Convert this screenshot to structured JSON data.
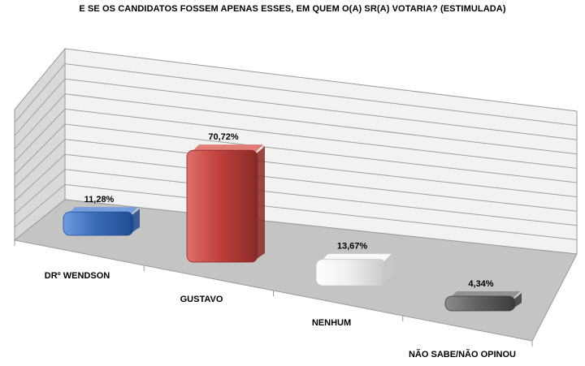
{
  "chart_data": {
    "type": "bar",
    "title": "E SE OS CANDIDATOS FOSSEM APENAS ESSES, EM QUEM O(A) SR(A) VOTARIA? (ESTIMULADA)",
    "categories": [
      "DRº WENDSON",
      "GUSTAVO",
      "NENHUM",
      "NÃO SABE/NÃO OPINOU"
    ],
    "series": [
      {
        "values": [
          11.28,
          70.72,
          13.67,
          4.34
        ],
        "data_labels": [
          "11,28%",
          "70,72%",
          "13,67%",
          "4,34%"
        ],
        "colors": [
          "#3f72bf",
          "#c0403c",
          "#f4f4f4",
          "#666666"
        ]
      }
    ],
    "ylim": [
      0,
      100
    ],
    "grid": true,
    "legend": "none",
    "style": "3d-perspective"
  }
}
